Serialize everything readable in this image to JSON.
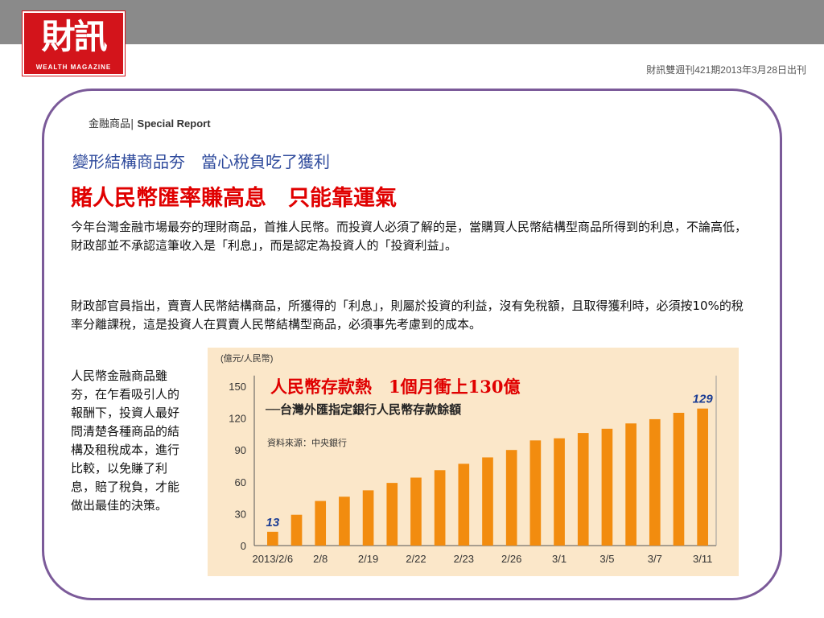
{
  "logo": {
    "main": "財訊",
    "sub": "WEALTH MAGAZINE"
  },
  "issue_line": "財訊雙週刊421期2013年3月28日出刊",
  "section": {
    "zh": "金融商品|",
    "en": "Special Report"
  },
  "subheadline": "變形結構商品夯　當心稅負吃了獲利",
  "headline": "賭人民幣匯率賺高息　只能靠運氣",
  "paragraph1": "今年台灣金融市場最夯的理財商品，首推人民幣。而投資人必須了解的是，當購買人民幣結構型商品所得到的利息，不論高低，財政部並不承認這筆收入是「利息」，而是認定為投資人的「投資利益」。",
  "paragraph2": "財政部官員指出，賣賣人民幣結構商品，所獲得的「利息」，則屬於投資的利益，沒有免稅額，且取得獲利時，必須按10%的稅率分離課稅，這是投資人在買賣人民幣結構型商品，必須事先考慮到的成本。",
  "side_text": "人民幣金融商品雖夯，在乍看吸引人的報酬下，投資人最好問清楚各種商品的結構及租稅成本，進行比較，以免賺了利息，賠了稅負，才能做出最佳的決策。",
  "colors": {
    "frame": "#7b5a99",
    "headline": "#e00000",
    "subhead": "#2e4a9c",
    "bar": "#f28c0f",
    "chart_bg": "#fbe7c9",
    "bar_label": "#1c3e94"
  },
  "chart_data": {
    "type": "bar",
    "unit_label": "(億元/人民幣)",
    "title": "人民幣存款熱　1個月衝上130億",
    "subtitle": "──台灣外匯指定銀行人民幣存款餘額",
    "source": "資料來源：中央銀行",
    "ylim": [
      0,
      160
    ],
    "yticks": [
      0,
      30,
      60,
      90,
      120,
      150
    ],
    "categories": [
      "2013/2/6",
      "",
      "2/8",
      "",
      "2/19",
      "",
      "2/22",
      "",
      "2/23",
      "",
      "2/26",
      "",
      "3/1",
      "",
      "3/5",
      "",
      "3/7",
      "",
      "3/11"
    ],
    "values": [
      13,
      29,
      42,
      46,
      52,
      59,
      64,
      71,
      77,
      83,
      90,
      99,
      101,
      106,
      110,
      115,
      119,
      125,
      129
    ],
    "data_labels": [
      "13",
      "",
      "",
      "",
      "",
      "",
      "",
      "",
      "",
      "",
      "",
      "",
      "",
      "",
      "",
      "",
      "",
      "",
      "129"
    ]
  }
}
